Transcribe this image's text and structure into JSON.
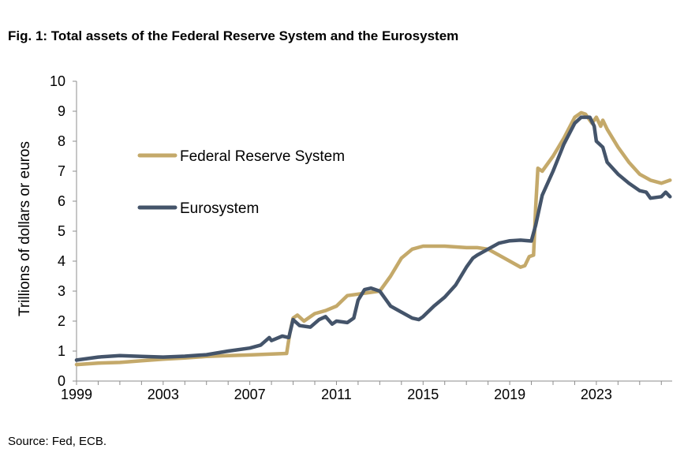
{
  "title": "Fig. 1: Total assets of the Federal Reserve System and the Eurosystem",
  "source": "Source: Fed, ECB.",
  "chart_data": {
    "type": "line",
    "ylabel": "Trillions of dollars or euros",
    "ylim": [
      0,
      10
    ],
    "xlim": [
      1999,
      2026.5
    ],
    "y_ticks": [
      "0",
      "1",
      "2",
      "3",
      "4",
      "5",
      "6",
      "7",
      "8",
      "9",
      "10"
    ],
    "x_ticks": [
      "1999",
      "2003",
      "2007",
      "2011",
      "2015",
      "2019",
      "2023"
    ],
    "legend_position": "left, inside plot",
    "series": [
      {
        "name": "Federal Reserve System",
        "color": "#c4a96a",
        "x": [
          1999.0,
          2000.0,
          2001.0,
          2002.0,
          2003.0,
          2004.0,
          2005.0,
          2006.0,
          2007.0,
          2008.0,
          2008.7,
          2008.85,
          2009.0,
          2009.2,
          2009.5,
          2010.0,
          2010.5,
          2011.0,
          2011.5,
          2012.0,
          2012.5,
          2013.0,
          2013.5,
          2014.0,
          2014.5,
          2015.0,
          2016.0,
          2017.0,
          2017.5,
          2018.0,
          2018.5,
          2019.0,
          2019.5,
          2019.7,
          2019.9,
          2020.1,
          2020.2,
          2020.3,
          2020.5,
          2021.0,
          2021.5,
          2022.0,
          2022.3,
          2022.5,
          2022.8,
          2023.0,
          2023.2,
          2023.3,
          2023.5,
          2024.0,
          2024.5,
          2025.0,
          2025.5,
          2026.0,
          2026.4
        ],
        "values": [
          0.55,
          0.6,
          0.62,
          0.68,
          0.73,
          0.77,
          0.82,
          0.85,
          0.87,
          0.9,
          0.92,
          1.6,
          2.1,
          2.2,
          2.0,
          2.25,
          2.35,
          2.5,
          2.85,
          2.9,
          2.95,
          3.0,
          3.5,
          4.1,
          4.4,
          4.5,
          4.5,
          4.45,
          4.45,
          4.4,
          4.2,
          4.0,
          3.8,
          3.85,
          4.15,
          4.2,
          5.8,
          7.1,
          7.0,
          7.5,
          8.1,
          8.8,
          8.95,
          8.9,
          8.6,
          8.8,
          8.5,
          8.7,
          8.4,
          7.8,
          7.3,
          6.9,
          6.7,
          6.6,
          6.7
        ]
      },
      {
        "name": "Eurosystem",
        "color": "#44546a",
        "x": [
          1999.0,
          2000.0,
          2001.0,
          2002.0,
          2003.0,
          2004.0,
          2005.0,
          2006.0,
          2007.0,
          2007.5,
          2007.9,
          2008.0,
          2008.5,
          2008.8,
          2009.0,
          2009.3,
          2009.8,
          2010.2,
          2010.5,
          2010.8,
          2011.0,
          2011.5,
          2011.8,
          2012.0,
          2012.3,
          2012.6,
          2013.0,
          2013.5,
          2014.0,
          2014.5,
          2014.8,
          2015.0,
          2015.5,
          2016.0,
          2016.5,
          2017.0,
          2017.3,
          2017.5,
          2018.0,
          2018.5,
          2019.0,
          2019.5,
          2020.0,
          2020.2,
          2020.5,
          2021.0,
          2021.5,
          2022.0,
          2022.3,
          2022.7,
          2022.9,
          2023.0,
          2023.3,
          2023.5,
          2024.0,
          2024.5,
          2025.0,
          2025.3,
          2025.5,
          2026.0,
          2026.2,
          2026.4
        ],
        "values": [
          0.7,
          0.8,
          0.85,
          0.82,
          0.8,
          0.83,
          0.88,
          1.0,
          1.1,
          1.2,
          1.45,
          1.35,
          1.5,
          1.45,
          2.05,
          1.85,
          1.8,
          2.05,
          2.15,
          1.9,
          2.0,
          1.95,
          2.1,
          2.7,
          3.05,
          3.1,
          3.0,
          2.5,
          2.3,
          2.1,
          2.05,
          2.15,
          2.5,
          2.8,
          3.2,
          3.8,
          4.1,
          4.2,
          4.4,
          4.6,
          4.68,
          4.7,
          4.67,
          5.2,
          6.2,
          7.0,
          7.9,
          8.6,
          8.8,
          8.8,
          8.5,
          8.0,
          7.8,
          7.3,
          6.9,
          6.6,
          6.35,
          6.3,
          6.1,
          6.15,
          6.3,
          6.15
        ]
      }
    ]
  }
}
